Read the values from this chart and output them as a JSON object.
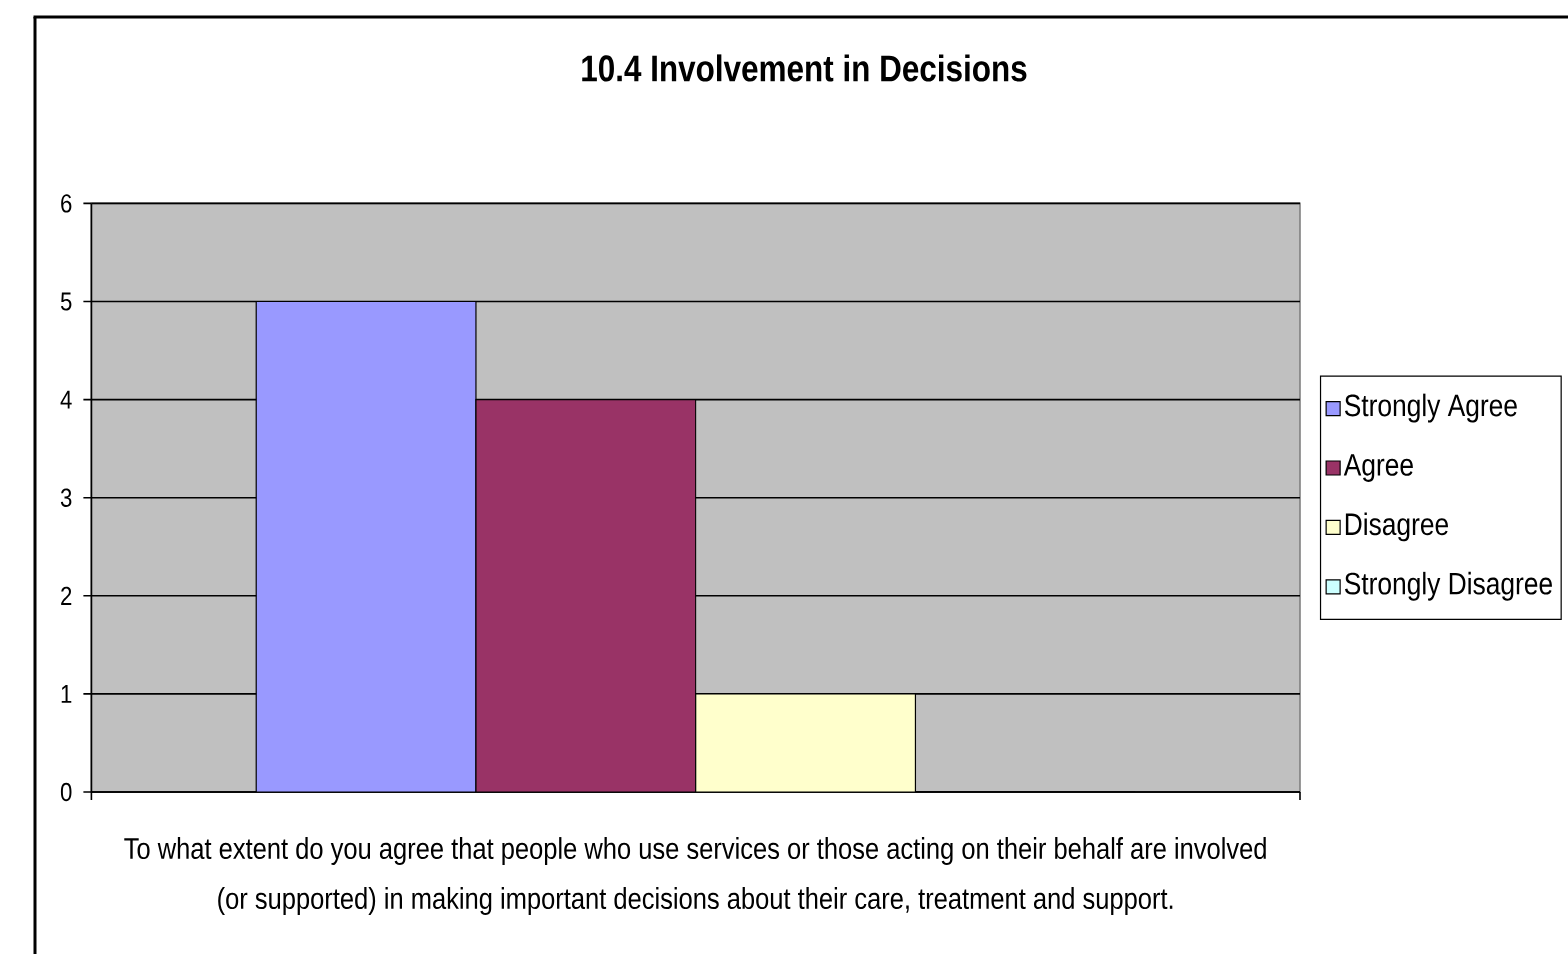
{
  "chart_data": {
    "type": "bar",
    "title": "10.4 Involvement in Decisions",
    "categories": [
      "To what extent do you agree that people who use services or those acting on their behalf are involved (or supported) in making important decisions about their care, treatment and support."
    ],
    "series": [
      {
        "name": "Strongly Agree",
        "color": "#9999ff",
        "values": [
          5
        ]
      },
      {
        "name": "Agree",
        "color": "#993366",
        "values": [
          4
        ]
      },
      {
        "name": "Disagree",
        "color": "#ffffcc",
        "values": [
          1
        ]
      },
      {
        "name": "Strongly Disagree",
        "color": "#ccffff",
        "values": [
          0
        ]
      }
    ],
    "ylim": [
      0,
      6
    ],
    "yticks": [
      0,
      1,
      2,
      3,
      4,
      5,
      6
    ],
    "grid": "y",
    "legend": "right"
  }
}
